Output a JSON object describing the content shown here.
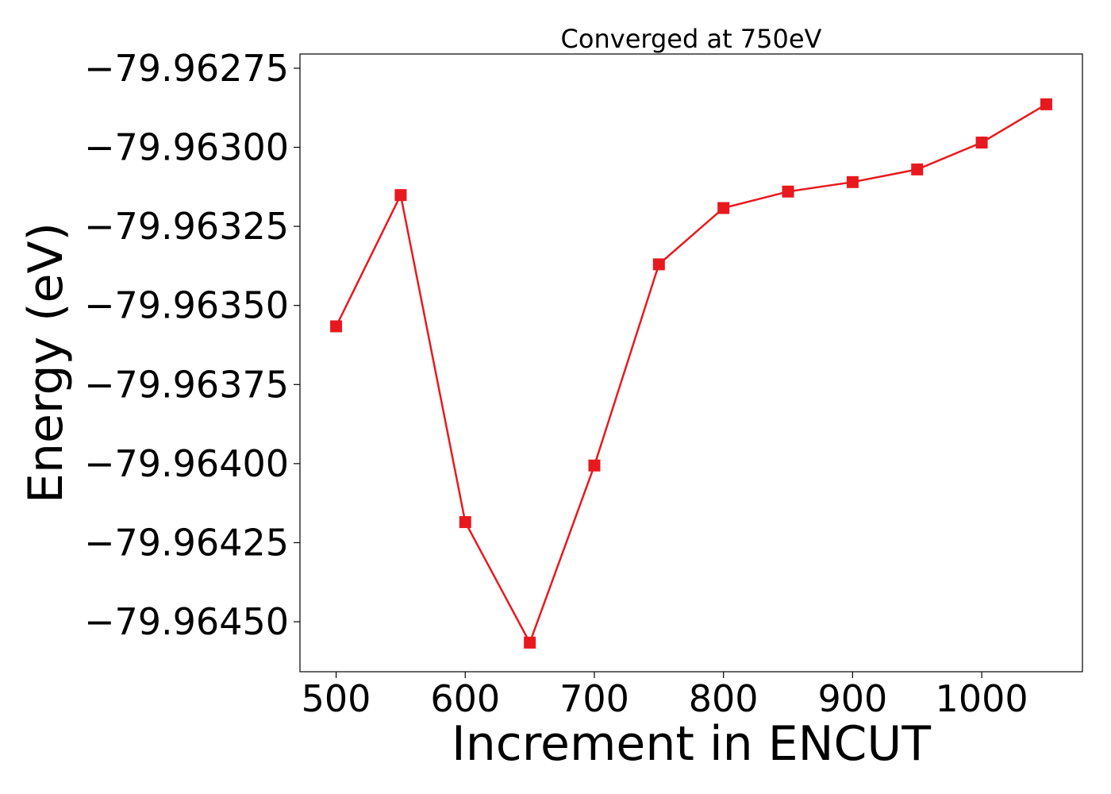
{
  "chart_data": {
    "type": "line",
    "title": "Converged at 750eV",
    "xlabel": "Increment in ENCUT",
    "ylabel": "Energy (eV)",
    "xlim": [
      472,
      1078
    ],
    "ylim": [
      -79.964658,
      -79.962705
    ],
    "xticks": [
      500,
      600,
      700,
      800,
      900,
      1000
    ],
    "xtick_labels": [
      "500",
      "600",
      "700",
      "800",
      "900",
      "1000"
    ],
    "yticks": [
      -79.96275,
      -79.963,
      -79.96325,
      -79.9635,
      -79.96375,
      -79.964,
      -79.96425,
      -79.9645
    ],
    "ytick_labels": [
      "−79.96275",
      "−79.96300",
      "−79.96325",
      "−79.96350",
      "−79.96375",
      "−79.96400",
      "−79.96425",
      "−79.96450"
    ],
    "grid": false,
    "legend": "none",
    "series": [
      {
        "color": "#e8191e",
        "marker": "square",
        "x": [
          500,
          550,
          600,
          650,
          700,
          750,
          800,
          850,
          900,
          950,
          1000,
          1050
        ],
        "y": [
          -79.963566,
          -79.963151,
          -79.964185,
          -79.964566,
          -79.964006,
          -79.96337,
          -79.963192,
          -79.96314,
          -79.96311,
          -79.96307,
          -79.962985,
          -79.962864
        ]
      }
    ]
  }
}
